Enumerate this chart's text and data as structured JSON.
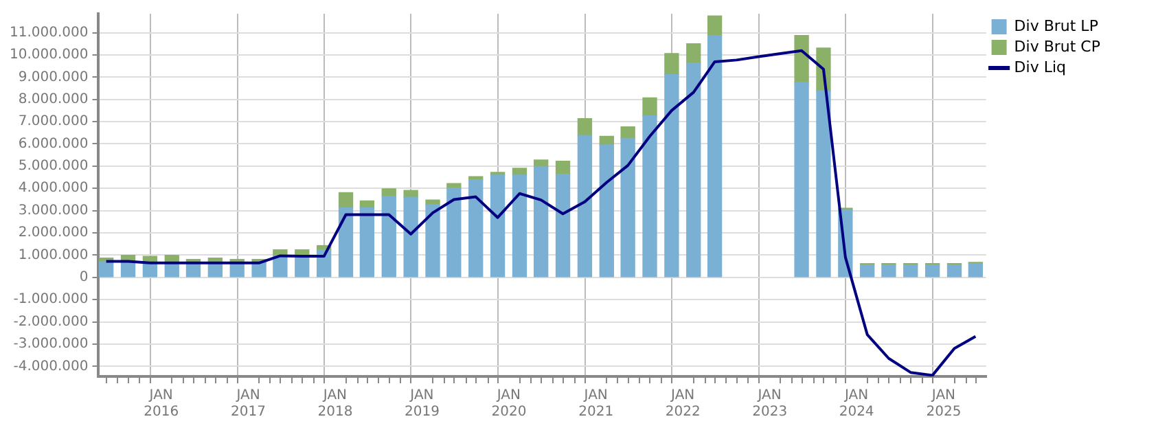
{
  "chart_data": {
    "type": "bar",
    "stacked": true,
    "grid": true,
    "legend": "top right",
    "x": [
      "2015-05-15",
      "2015-08-15",
      "2015-11-15",
      "2016-02-15",
      "2016-05-15",
      "2016-08-15",
      "2016-11-15",
      "2017-02-15",
      "2017-05-15",
      "2017-08-15",
      "2017-11-15",
      "2018-02-15",
      "2018-05-15",
      "2018-08-15",
      "2018-11-15",
      "2019-02-15",
      "2019-05-15",
      "2019-08-15",
      "2019-11-15",
      "2020-02-15",
      "2020-05-15",
      "2020-08-15",
      "2020-11-15",
      "2021-02-15",
      "2021-05-15",
      "2021-08-15",
      "2021-11-15",
      "2022-02-15",
      "2022-05-15",
      "2022-08-15",
      "2022-11-15",
      "2023-02-15",
      "2023-05-15",
      "2023-08-15",
      "2023-11-15",
      "2024-02-15",
      "2024-05-15",
      "2024-08-15",
      "2024-11-15",
      "2025-02-15",
      "2025-05-15"
    ],
    "series": [
      {
        "name": "Div Brut LP",
        "color": "#7ab0d4",
        "values": [
          700000,
          700000,
          660000,
          660000,
          660000,
          660000,
          660000,
          660000,
          990000,
          990000,
          1240000,
          3130000,
          3130000,
          3640000,
          3600000,
          3270000,
          4020000,
          4390000,
          4600000,
          4600000,
          4970000,
          4640000,
          6380000,
          5960000,
          6250000,
          7270000,
          9110000,
          9630000,
          10870000,
          null,
          null,
          null,
          8760000,
          8390000,
          3040000,
          560000,
          560000,
          560000,
          560000,
          560000,
          620000
        ]
      },
      {
        "name": "Div Brut CP",
        "color": "#8bb068",
        "values": [
          170000,
          290000,
          290000,
          330000,
          150000,
          210000,
          150000,
          150000,
          250000,
          250000,
          190000,
          680000,
          310000,
          340000,
          310000,
          210000,
          200000,
          140000,
          120000,
          310000,
          310000,
          580000,
          760000,
          380000,
          520000,
          800000,
          950000,
          870000,
          880000,
          null,
          null,
          null,
          2110000,
          1920000,
          70000,
          60000,
          60000,
          60000,
          60000,
          60000,
          60000
        ]
      },
      {
        "name": "Div Liq",
        "type": "line",
        "color": "#000080",
        "values": [
          720000,
          720000,
          650000,
          650000,
          650000,
          650000,
          650000,
          650000,
          970000,
          950000,
          950000,
          2820000,
          2820000,
          2820000,
          1950000,
          2900000,
          3500000,
          3620000,
          2690000,
          3770000,
          3480000,
          2860000,
          3400000,
          4270000,
          5030000,
          6340000,
          7500000,
          8320000,
          9690000,
          9770000,
          9920000,
          10060000,
          10190000,
          9360000,
          910000,
          -2570000,
          -3640000,
          -4270000,
          -4400000,
          -3190000,
          -2650000
        ]
      }
    ],
    "xlim": [
      "2015-04-10",
      "2025-06-28"
    ],
    "xticks": [
      {
        "value": "2015-07-01",
        "label": null
      },
      {
        "value": "2015-10-01",
        "label": null
      },
      {
        "value": "2016-01-01",
        "label": "JAN 2016"
      },
      {
        "value": "2016-04-01",
        "label": null
      },
      {
        "value": "2016-07-01",
        "label": null
      },
      {
        "value": "2016-10-01",
        "label": null
      },
      {
        "value": "2017-01-01",
        "label": "JAN 2017"
      },
      {
        "value": "2017-04-01",
        "label": null
      },
      {
        "value": "2017-07-01",
        "label": null
      },
      {
        "value": "2017-10-01",
        "label": null
      },
      {
        "value": "2018-01-01",
        "label": "JAN 2018"
      },
      {
        "value": "2018-04-01",
        "label": null
      },
      {
        "value": "2018-07-01",
        "label": null
      },
      {
        "value": "2018-10-01",
        "label": null
      },
      {
        "value": "2019-01-01",
        "label": "JAN 2019"
      },
      {
        "value": "2019-04-01",
        "label": null
      },
      {
        "value": "2019-07-01",
        "label": null
      },
      {
        "value": "2019-10-01",
        "label": null
      },
      {
        "value": "2020-01-01",
        "label": "JAN 2020"
      },
      {
        "value": "2020-04-01",
        "label": null
      },
      {
        "value": "2020-07-01",
        "label": null
      },
      {
        "value": "2020-10-01",
        "label": null
      },
      {
        "value": "2021-01-01",
        "label": "JAN 2021"
      },
      {
        "value": "2021-04-01",
        "label": null
      },
      {
        "value": "2021-07-01",
        "label": null
      },
      {
        "value": "2021-10-01",
        "label": null
      },
      {
        "value": "2022-01-01",
        "label": "JAN 2022"
      },
      {
        "value": "2022-04-01",
        "label": null
      },
      {
        "value": "2022-07-01",
        "label": null
      },
      {
        "value": "2022-10-01",
        "label": null
      },
      {
        "value": "2023-01-01",
        "label": "JAN 2023"
      },
      {
        "value": "2023-04-01",
        "label": null
      },
      {
        "value": "2023-07-01",
        "label": null
      },
      {
        "value": "2023-10-01",
        "label": null
      },
      {
        "value": "2024-01-01",
        "label": "JAN 2024"
      },
      {
        "value": "2024-04-01",
        "label": null
      },
      {
        "value": "2024-07-01",
        "label": null
      },
      {
        "value": "2024-10-01",
        "label": null
      },
      {
        "value": "2025-01-01",
        "label": "JAN 2025"
      },
      {
        "value": "2025-04-01",
        "label": null
      }
    ],
    "ylim": [
      -4450000,
      11850000
    ],
    "yticks": [
      {
        "value": -4000000,
        "label": "-4.000.000"
      },
      {
        "value": -3000000,
        "label": "-3.000.000"
      },
      {
        "value": -2000000,
        "label": "-2.000.000"
      },
      {
        "value": -1000000,
        "label": "-1.000.000"
      },
      0,
      {
        "value": 1000000,
        "label": "1.000.000"
      },
      {
        "value": 2000000,
        "label": "2.000.000"
      },
      {
        "value": 3000000,
        "label": "3.000.000"
      },
      {
        "value": 4000000,
        "label": "4.000.000"
      },
      {
        "value": 5000000,
        "label": "5.000.000"
      },
      {
        "value": 6000000,
        "label": "6.000.000"
      },
      {
        "value": 7000000,
        "label": "7.000.000"
      },
      {
        "value": 8000000,
        "label": "8.000.000"
      },
      {
        "value": 9000000,
        "label": "9.000.000"
      },
      {
        "value": 10000000,
        "label": "10.000.000"
      },
      {
        "value": 11000000,
        "label": "11.000.000"
      }
    ]
  }
}
